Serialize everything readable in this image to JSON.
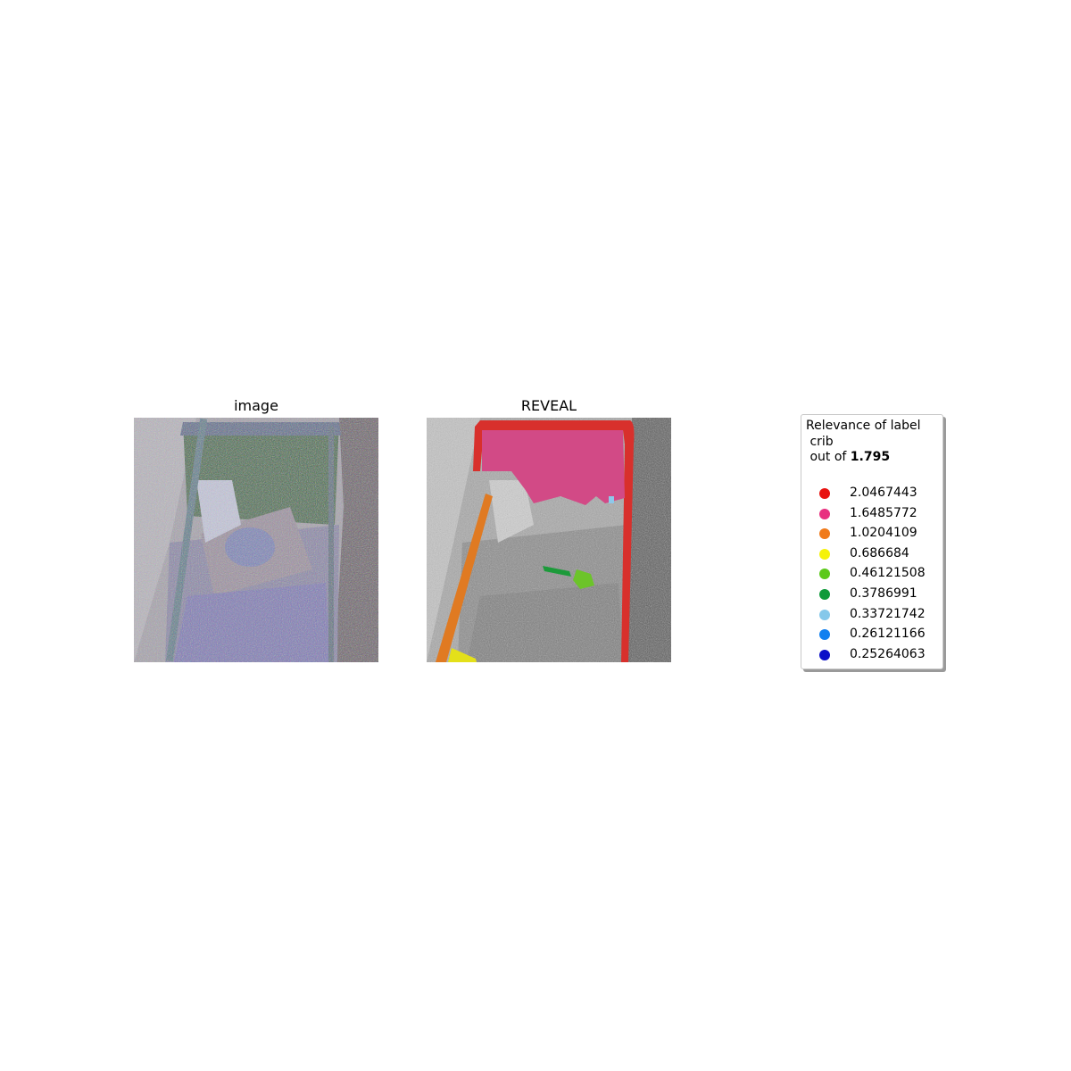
{
  "panels": {
    "left_title": "image",
    "right_title": "REVEAL"
  },
  "legend": {
    "line1": "Relevance of label",
    "line2": " crib",
    "line3_prefix": " out of ",
    "line3_bold": "1.795",
    "items": [
      {
        "value": "2.0467443",
        "color": "#e8120f"
      },
      {
        "value": "1.6485772",
        "color": "#e8307f"
      },
      {
        "value": "1.0204109",
        "color": "#f07a1a"
      },
      {
        "value": "0.686684",
        "color": "#f5f20a"
      },
      {
        "value": "0.46121508",
        "color": "#5cc91a"
      },
      {
        "value": "0.3786991",
        "color": "#0f9a3a"
      },
      {
        "value": "0.33721742",
        "color": "#85c8ea"
      },
      {
        "value": "0.26121166",
        "color": "#1080f0"
      },
      {
        "value": "0.25264063",
        "color": "#0a0fc8"
      }
    ]
  }
}
